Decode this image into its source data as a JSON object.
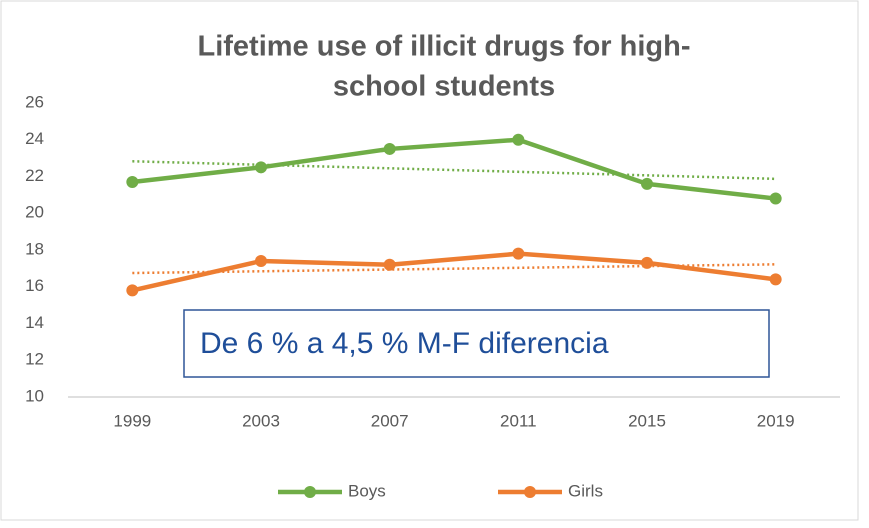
{
  "chart_data": {
    "type": "line",
    "title": [
      "Lifetime use of illicit drugs for high-",
      "school students"
    ],
    "categories": [
      "1999",
      "2003",
      "2007",
      "2011",
      "2015",
      "2019"
    ],
    "series": [
      {
        "name": "Boys",
        "color": "#70ad47",
        "values": [
          21.7,
          22.5,
          23.5,
          24.0,
          21.6,
          20.8
        ]
      },
      {
        "name": "Girls",
        "color": "#ed7d31",
        "values": [
          15.8,
          17.4,
          17.2,
          17.8,
          17.3,
          16.4
        ]
      }
    ],
    "ylim": [
      10,
      26
    ],
    "yticks": [
      10,
      12,
      14,
      16,
      18,
      20,
      22,
      24,
      26
    ],
    "grid": false,
    "trendline": "linear",
    "legend": "bottom",
    "annotation": "De 6 % a 4,5 % M-F diferencia"
  }
}
